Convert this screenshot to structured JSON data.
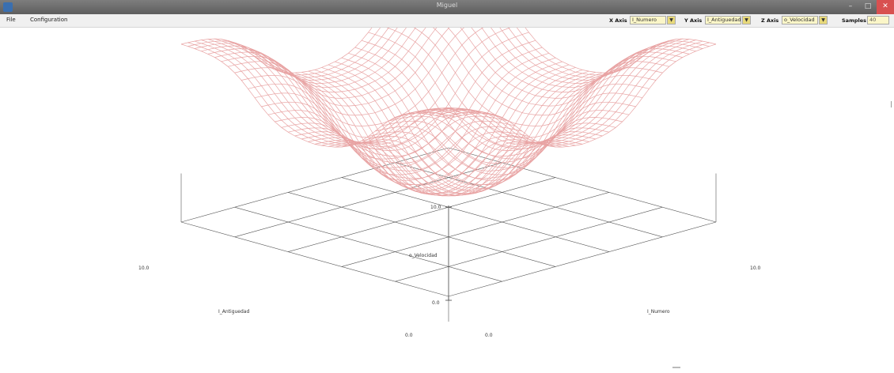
{
  "window": {
    "title": "Miguel"
  },
  "menu": {
    "file": "File",
    "configuration": "Configuration"
  },
  "controls": {
    "x_axis_label": "X Axis",
    "x_axis_value": "I_Numero",
    "y_axis_label": "Y Axis",
    "y_axis_value": "I_Antiguedad",
    "z_axis_label": "Z Axis",
    "z_axis_value": "o_Velocidad",
    "samples_label": "Samples",
    "samples_value": "40"
  },
  "plot": {
    "z_max_label": "10.0",
    "z_min_label": "0.0",
    "z_axis_name": "o_Velocidad",
    "y_axis_name": "I_Antiguedad",
    "x_axis_name": "I_Numero",
    "y_max_label": "10.0",
    "y_min_label": "0.0",
    "x_max_label": "10.0",
    "x_min_label": "0.0",
    "mesh_color": "#e8a3a3",
    "grid_color": "#555555"
  },
  "colors": {
    "accent_input": "#fbf6c8",
    "combo_arrow": "#e8d97a",
    "close": "#d85050"
  }
}
